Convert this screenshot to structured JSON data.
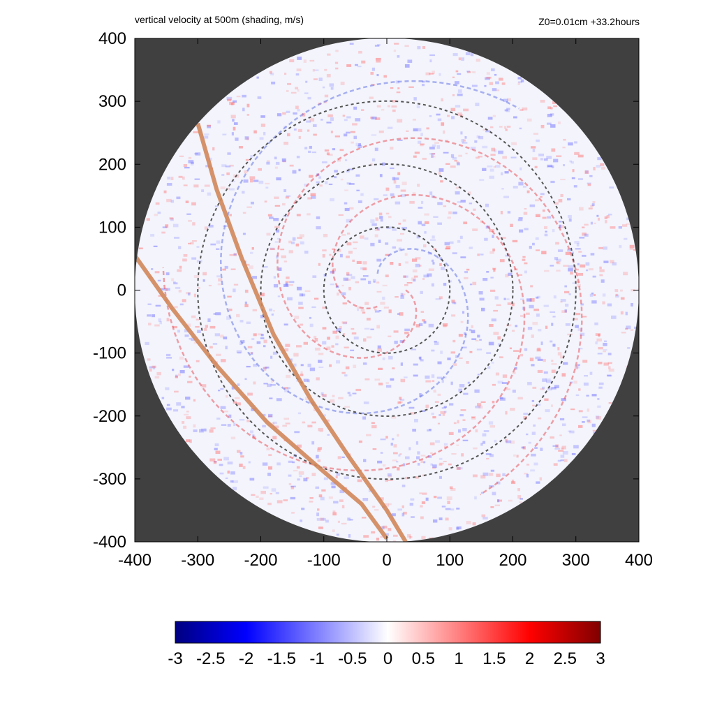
{
  "chart_data": {
    "type": "heatmap",
    "title": "vertical velocity at 500m (shading, m/s)",
    "annotation": "Z0=0.01cm  +33.2hours",
    "xlim": [
      -400,
      400
    ],
    "ylim": [
      -400,
      400
    ],
    "x_ticks": [
      -400,
      -300,
      -200,
      -100,
      0,
      100,
      200,
      300,
      400
    ],
    "y_ticks": [
      -400,
      -300,
      -200,
      -100,
      0,
      100,
      200,
      300,
      400
    ],
    "domain_radius": 400,
    "outside_domain_color": "#404040",
    "reference_circles": {
      "radii": [
        100,
        200,
        300
      ],
      "style": "dashed",
      "color": "#555555"
    },
    "tracks": [
      {
        "color": "#d2875a",
        "points": [
          [
            -300,
            265
          ],
          [
            -270,
            160
          ],
          [
            -230,
            50
          ],
          [
            -180,
            -70
          ],
          [
            -120,
            -175
          ],
          [
            -60,
            -265
          ],
          [
            0,
            -350
          ],
          [
            30,
            -400
          ]
        ]
      },
      {
        "color": "#d2875a",
        "points": [
          [
            -400,
            55
          ],
          [
            -340,
            -30
          ],
          [
            -270,
            -120
          ],
          [
            -190,
            -210
          ],
          [
            -110,
            -280
          ],
          [
            -40,
            -340
          ],
          [
            0,
            -395
          ]
        ]
      }
    ],
    "colorbar": {
      "min": -3,
      "max": 3,
      "tick_labels": [
        "-3",
        "-2.5",
        "-2",
        "-1.5",
        "-1",
        "-0.5",
        "0",
        "0.5",
        "1",
        "1.5",
        "2",
        "2.5",
        "3"
      ],
      "stops": [
        {
          "value": -3,
          "color": "#000080"
        },
        {
          "value": -2,
          "color": "#0000ff"
        },
        {
          "value": 0,
          "color": "#ffffff"
        },
        {
          "value": 2,
          "color": "#ff0000"
        },
        {
          "value": 3,
          "color": "#800000"
        }
      ]
    }
  }
}
